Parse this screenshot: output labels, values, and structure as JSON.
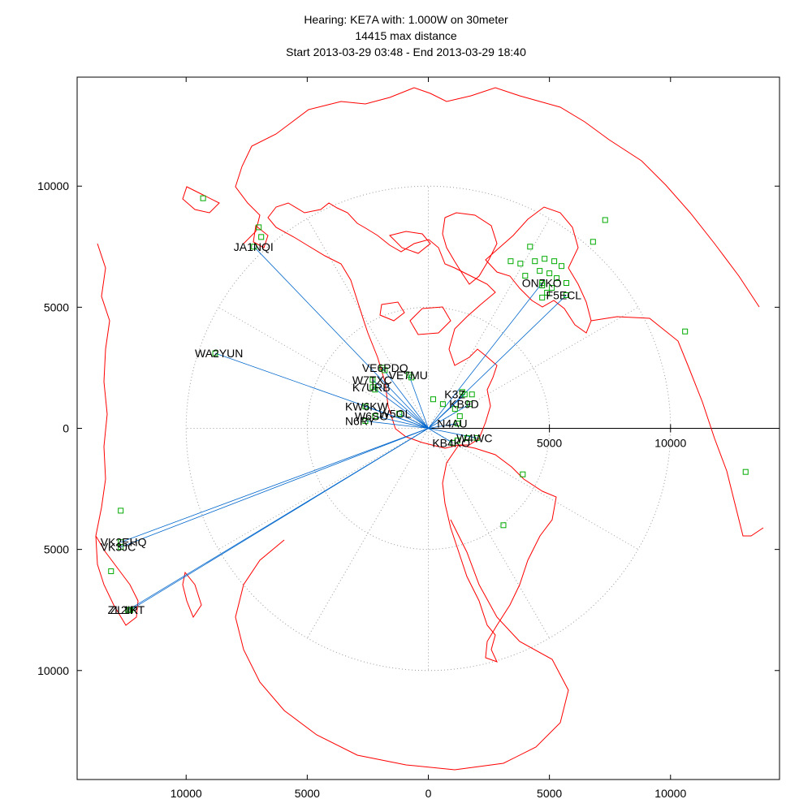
{
  "chart_data": {
    "type": "scatter",
    "title_lines": [
      "Hearing: KE7A with: 1.000W on 30meter",
      "14415 max distance",
      "Start 2013-03-29 03:48 - End 2013-03-29 18:40"
    ],
    "xlim": [
      -14500,
      14500
    ],
    "ylim": [
      -14500,
      14500
    ],
    "x_ticks": [
      {
        "value": -10000,
        "label": "10000"
      },
      {
        "value": -5000,
        "label": "5000"
      },
      {
        "value": 0,
        "label": "0"
      },
      {
        "value": 5000,
        "label": "5000"
      },
      {
        "value": 10000,
        "label": "10000"
      }
    ],
    "y_ticks": [
      {
        "value": 10000,
        "label": "10000"
      },
      {
        "value": 5000,
        "label": "5000"
      },
      {
        "value": 0,
        "label": "0"
      },
      {
        "value": -5000,
        "label": "5000"
      },
      {
        "value": -10000,
        "label": "10000"
      }
    ],
    "inner_x_labels": [
      {
        "value": 5000,
        "label": "5000"
      },
      {
        "value": 10000,
        "label": "10000"
      }
    ],
    "range_rings": [
      5000,
      10000
    ],
    "grid": "polar, dotted",
    "colors": {
      "coastline": "#ff0000",
      "spots": "#00aa00",
      "paths": "#0066cc",
      "grid": "#999999",
      "text": "#000000"
    },
    "labeled_spots": [
      {
        "call": "JA1NQI",
        "x": -7200,
        "y": 7500
      },
      {
        "call": "WA2YUN",
        "x": -8800,
        "y": 3100
      },
      {
        "call": "VK2EHQ",
        "x": -12700,
        "y": -4700
      },
      {
        "call": "VK3JC",
        "x": -12700,
        "y": -4900
      },
      {
        "call": "ZL2IK",
        "x": -12400,
        "y": -7500
      },
      {
        "call": "ZL1RT",
        "x": -12300,
        "y": -7500
      },
      {
        "call": "VE6PDQ",
        "x": -1900,
        "y": 2500
      },
      {
        "call": "VE7MU",
        "x": -800,
        "y": 2200
      },
      {
        "call": "W7TXC",
        "x": -2300,
        "y": 2000
      },
      {
        "call": "K7URB",
        "x": -2300,
        "y": 1700
      },
      {
        "call": "KW6KW",
        "x": -2600,
        "y": 900
      },
      {
        "call": "W6SO",
        "x": -2200,
        "y": 500
      },
      {
        "call": "N6RY",
        "x": -2600,
        "y": 300
      },
      {
        "call": "W5OL",
        "x": -1200,
        "y": 600
      },
      {
        "call": "KB9D",
        "x": 1700,
        "y": 1000
      },
      {
        "call": "K3Z",
        "x": 1500,
        "y": 1400
      },
      {
        "call": "N4AU",
        "x": 1200,
        "y": 200
      },
      {
        "call": "W4WC",
        "x": 2000,
        "y": -400
      },
      {
        "call": "KB4KO",
        "x": 1000,
        "y": -600
      },
      {
        "call": "ON7KO",
        "x": 4700,
        "y": 6000
      },
      {
        "call": "F5ECL",
        "x": 5700,
        "y": 5500
      }
    ],
    "extra_spots": [
      {
        "x": -9300,
        "y": 9500
      },
      {
        "x": -7000,
        "y": 8300
      },
      {
        "x": -6900,
        "y": 7900
      },
      {
        "x": -12700,
        "y": -3400
      },
      {
        "x": -13100,
        "y": -5900
      },
      {
        "x": -1800,
        "y": 2400
      },
      {
        "x": -700,
        "y": 2100
      },
      {
        "x": -2200,
        "y": 1600
      },
      {
        "x": 200,
        "y": 1200
      },
      {
        "x": 600,
        "y": 1000
      },
      {
        "x": 1100,
        "y": 800
      },
      {
        "x": 1400,
        "y": 1500
      },
      {
        "x": 1800,
        "y": 1400
      },
      {
        "x": 1300,
        "y": 500
      },
      {
        "x": 1600,
        "y": -400
      },
      {
        "x": 1200,
        "y": -500
      },
      {
        "x": 4200,
        "y": 7500
      },
      {
        "x": 3800,
        "y": 6800
      },
      {
        "x": 4400,
        "y": 6900
      },
      {
        "x": 4800,
        "y": 7000
      },
      {
        "x": 5200,
        "y": 6900
      },
      {
        "x": 5500,
        "y": 6700
      },
      {
        "x": 4000,
        "y": 6300
      },
      {
        "x": 4600,
        "y": 6500
      },
      {
        "x": 5000,
        "y": 6400
      },
      {
        "x": 5300,
        "y": 6200
      },
      {
        "x": 5700,
        "y": 6000
      },
      {
        "x": 4700,
        "y": 5900
      },
      {
        "x": 5100,
        "y": 5800
      },
      {
        "x": 4900,
        "y": 5600
      },
      {
        "x": 4700,
        "y": 5400
      },
      {
        "x": 3400,
        "y": 6900
      },
      {
        "x": 6800,
        "y": 7700
      },
      {
        "x": 7300,
        "y": 8600
      },
      {
        "x": 10600,
        "y": 4000
      },
      {
        "x": 13100,
        "y": -1800
      },
      {
        "x": 3900,
        "y": -1900
      },
      {
        "x": 3100,
        "y": -4000
      }
    ]
  }
}
